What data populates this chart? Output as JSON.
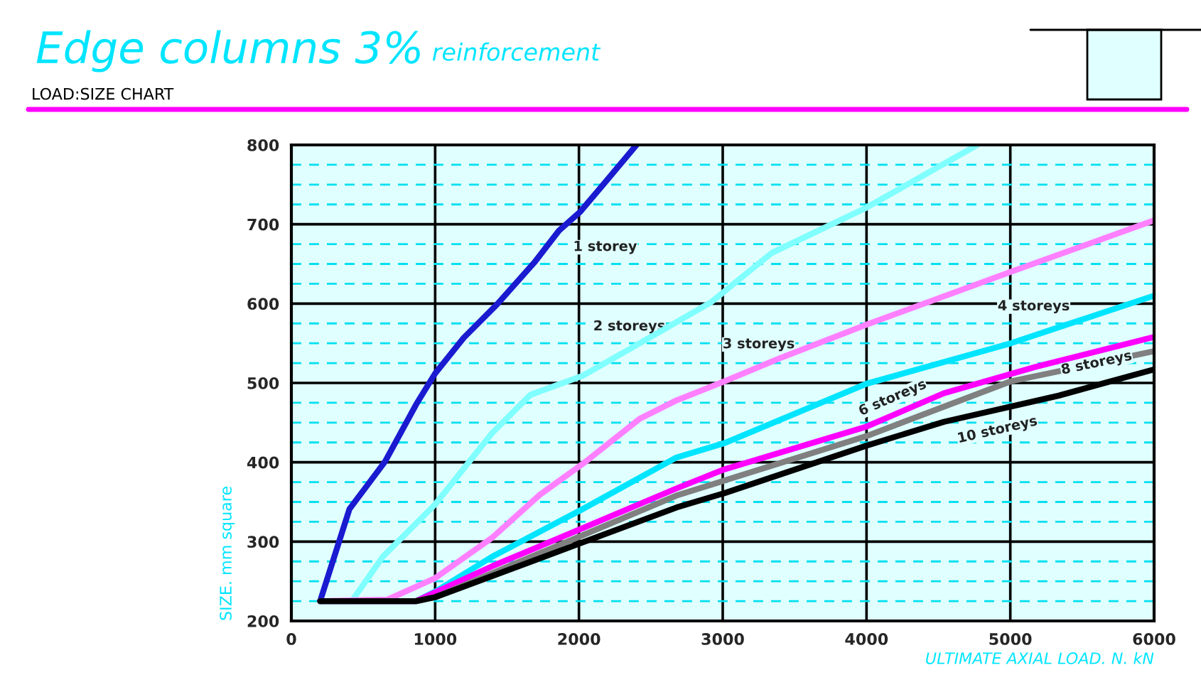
{
  "chart_data": {
    "type": "line",
    "title": "Edge columns 3%",
    "subtitle": "reinforcement",
    "annotations": [
      "LOAD:SIZE CHART"
    ],
    "xlabel": "ULTIMATE AXIAL LOAD. N. kN",
    "ylabel": "SIZE. mm square",
    "xlim": [
      0,
      6000
    ],
    "xticks": [
      0,
      1000,
      2000,
      3000,
      4000,
      5000,
      6000
    ],
    "ylim": [
      200,
      800
    ],
    "yticks": [
      200,
      {
        "value": 225,
        "label": null
      },
      {
        "value": 250,
        "label": null
      },
      {
        "value": 275,
        "label": null
      },
      300,
      {
        "value": 325,
        "label": null
      },
      {
        "value": 350,
        "label": null
      },
      {
        "value": 375,
        "label": null
      },
      400,
      {
        "value": 425,
        "label": null
      },
      {
        "value": 450,
        "label": null
      },
      {
        "value": 475,
        "label": null
      },
      500,
      {
        "value": 525,
        "label": null
      },
      {
        "value": 550,
        "label": null
      },
      {
        "value": 575,
        "label": null
      },
      600,
      {
        "value": 625,
        "label": null
      },
      {
        "value": 650,
        "label": null
      },
      {
        "value": 675,
        "label": null
      },
      700,
      {
        "value": 725,
        "label": null
      },
      {
        "value": 750,
        "label": null
      },
      {
        "value": 775,
        "label": null
      },
      800
    ],
    "grid": true,
    "legend": false,
    "marker": "none",
    "line_style": "solid",
    "series": [
      {
        "name": "1 storey",
        "color": "#1a1ad0",
        "x": [
          200,
          404,
          652,
          868,
          1000,
          1199,
          1430,
          1695,
          1861,
          2010,
          2192,
          2400
        ],
        "values": [
          225,
          341,
          401,
          473,
          512,
          557,
          599,
          653,
          692,
          716,
          755,
          800
        ]
      },
      {
        "name": "2 storeys",
        "color": "#80ffff",
        "x": [
          200,
          420,
          636,
          1000,
          1397,
          1662,
          2026,
          2490,
          2921,
          3342,
          4000,
          4770
        ],
        "values": [
          225,
          225,
          281,
          347,
          437,
          485,
          509,
          557,
          602,
          664,
          721,
          800
        ]
      },
      {
        "name": "3 storeys",
        "color": "#ff80ff",
        "x": [
          200,
          669,
          1000,
          1397,
          1728,
          2026,
          2424,
          2678,
          3010,
          3408,
          4007,
          5003,
          6000
        ],
        "values": [
          225,
          227,
          254,
          305,
          359,
          398,
          455,
          478,
          502,
          532,
          574,
          640,
          705
        ]
      },
      {
        "name": "4 storeys",
        "color": "#00e5ff",
        "x": [
          200,
          868,
          1000,
          1397,
          2026,
          2678,
          3010,
          4000,
          5003,
          5302,
          6000
        ],
        "values": [
          225,
          225,
          237,
          281,
          341,
          406,
          424,
          499,
          550,
          568,
          610
        ]
      },
      {
        "name": "6 storeys",
        "color": "#ff00ff",
        "x": [
          200,
          868,
          1000,
          1397,
          2026,
          2678,
          3010,
          4000,
          4538,
          5169,
          6000
        ],
        "values": [
          225,
          225,
          236,
          269,
          317,
          367,
          391,
          445,
          487,
          520,
          558
        ]
      },
      {
        "name": "8 storeys",
        "color": "#808080",
        "x": [
          200,
          868,
          1000,
          2026,
          2678,
          4000,
          5003,
          6000
        ],
        "values": [
          225,
          225,
          230,
          308,
          358,
          433,
          502,
          540
        ]
      },
      {
        "name": "10 storeys",
        "color": "#000000",
        "x": [
          200,
          868,
          1000,
          2026,
          2678,
          3010,
          4000,
          4538,
          5336,
          6000
        ],
        "values": [
          225,
          225,
          230,
          299,
          343,
          361,
          421,
          451,
          484,
          517
        ]
      }
    ]
  }
}
